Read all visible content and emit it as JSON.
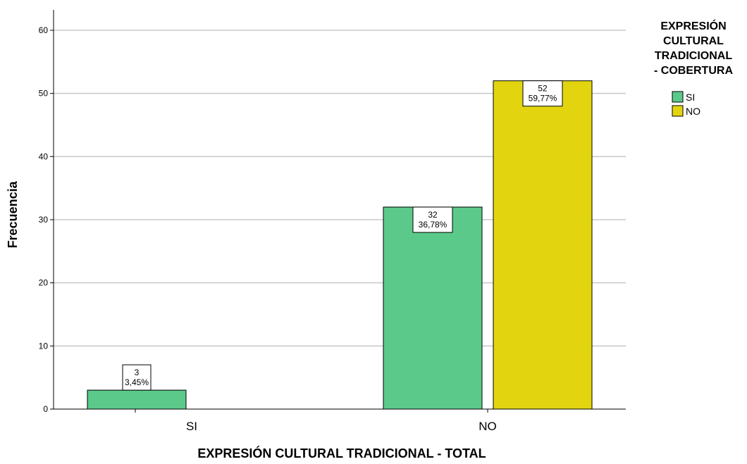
{
  "chart_data": {
    "type": "bar",
    "categories": [
      "SI",
      "NO"
    ],
    "series": [
      {
        "name": "SI",
        "color": "#5bc98a",
        "values": [
          3,
          32
        ],
        "labels": [
          "3,45%",
          "36,78%"
        ]
      },
      {
        "name": "NO",
        "color": "#e2d510",
        "values": [
          0,
          52
        ],
        "labels": [
          "",
          "59,77%"
        ]
      }
    ],
    "xlabel": "EXPRESIÓN CULTURAL TRADICIONAL - TOTAL",
    "ylabel": "Frecuencia",
    "ylim": [
      0,
      60
    ],
    "yticks": [
      0,
      10,
      20,
      30,
      40,
      50,
      60
    ],
    "grid": true,
    "legend": {
      "title_lines": [
        "EXPRESIÓN",
        "CULTURAL",
        "TRADICIONAL",
        "- COBERTURA"
      ],
      "position": "right"
    }
  }
}
